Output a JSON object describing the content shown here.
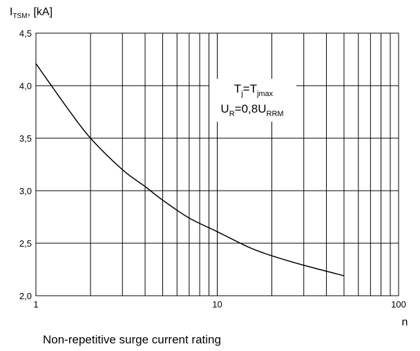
{
  "chart_data": {
    "type": "line",
    "title": "",
    "caption": "Non-repetitive surge current rating",
    "ylabel": {
      "main": "I",
      "sub": "TSM",
      "rest": ", [kA]"
    },
    "xlabel": "n",
    "x_scale": "log",
    "xlim": [
      1,
      100
    ],
    "ylim": [
      2.0,
      4.5
    ],
    "x_ticks": [
      1,
      10,
      100
    ],
    "x_tick_labels": [
      "1",
      "10",
      "100"
    ],
    "y_ticks": [
      2.0,
      2.5,
      3.0,
      3.5,
      4.0,
      4.5
    ],
    "y_tick_labels": [
      "2,0",
      "2,5",
      "3,0",
      "3,5",
      "4,0",
      "4,5"
    ],
    "grid": true,
    "annotation": {
      "line1": {
        "a": "T",
        "a_sub": "j",
        "eq": "=T",
        "b_sub": "jmax"
      },
      "line2": {
        "a": "U",
        "a_sub": "R",
        "eq": "=0,8U",
        "b_sub": "RRM"
      }
    },
    "series": [
      {
        "x": [
          1,
          1.5,
          2,
          3,
          4,
          5,
          7,
          10,
          15,
          20,
          30,
          50
        ],
        "y": [
          4.21,
          3.78,
          3.5,
          3.2,
          3.04,
          2.91,
          2.74,
          2.61,
          2.46,
          2.38,
          2.29,
          2.19
        ]
      }
    ]
  }
}
